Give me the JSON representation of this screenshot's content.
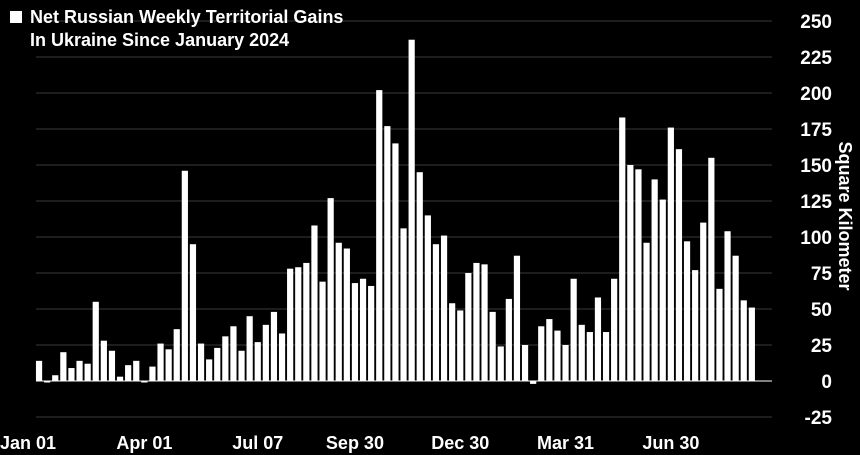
{
  "chart_data": {
    "type": "bar",
    "title": "Net Russian Weekly Territorial Gains In Ukraine Since January 2024",
    "title_lines": [
      "Net Russian Weekly Territorial Gains",
      "In Ukraine Since January 2024"
    ],
    "ylabel": "Square Kilometer",
    "xlabel": "",
    "ylim": [
      -25,
      250
    ],
    "yticks": [
      -25,
      0,
      25,
      50,
      75,
      100,
      125,
      150,
      175,
      200,
      225,
      250
    ],
    "xtick_labels": [
      "Jan 01",
      "Apr 01",
      "Jul 07",
      "Sep 30",
      "Dec 30",
      "Mar 31",
      "Jun 30"
    ],
    "xtick_bar_index": [
      0,
      13,
      27,
      39,
      52,
      65,
      78
    ],
    "grid": true,
    "legend": "top-left",
    "bar_color": "#ffffff",
    "values": [
      14,
      -1,
      4,
      20,
      9,
      14,
      12,
      55,
      28,
      21,
      3,
      11,
      14,
      0,
      10,
      26,
      22,
      36,
      146,
      95,
      26,
      15,
      23,
      31,
      38,
      21,
      45,
      27,
      39,
      48,
      33,
      78,
      79,
      82,
      108,
      69,
      127,
      96,
      92,
      68,
      71,
      66,
      202,
      177,
      165,
      106,
      237,
      145,
      115,
      95,
      101,
      54,
      49,
      75,
      82,
      81,
      48,
      24,
      57,
      87,
      25,
      -2,
      38,
      43,
      35,
      25,
      71,
      39,
      34,
      58,
      34,
      71,
      183,
      150,
      147,
      96,
      140,
      126,
      176,
      161,
      97,
      77,
      110,
      155,
      64,
      104,
      87,
      56,
      51
    ]
  }
}
